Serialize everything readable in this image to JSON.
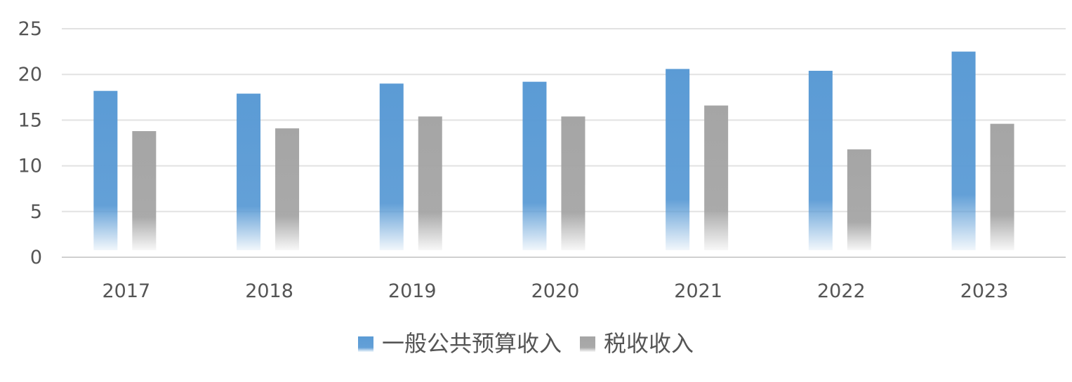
{
  "chart_data": {
    "type": "bar",
    "categories": [
      "2017",
      "2018",
      "2019",
      "2020",
      "2021",
      "2022",
      "2023"
    ],
    "series": [
      {
        "name": "一般公共预算收入",
        "values": [
          18.2,
          17.9,
          19.0,
          19.2,
          20.6,
          20.4,
          22.5
        ]
      },
      {
        "name": "税收收入",
        "values": [
          13.8,
          14.1,
          15.4,
          15.4,
          16.6,
          11.8,
          14.6
        ]
      }
    ],
    "ylim": [
      0,
      25
    ],
    "yticks": [
      0,
      5,
      10,
      15,
      20,
      25
    ],
    "grid": true,
    "legend_position": "bottom",
    "colors": [
      "#5b9bd5",
      "#a5a5a5"
    ],
    "title": "",
    "xlabel": "",
    "ylabel": ""
  }
}
